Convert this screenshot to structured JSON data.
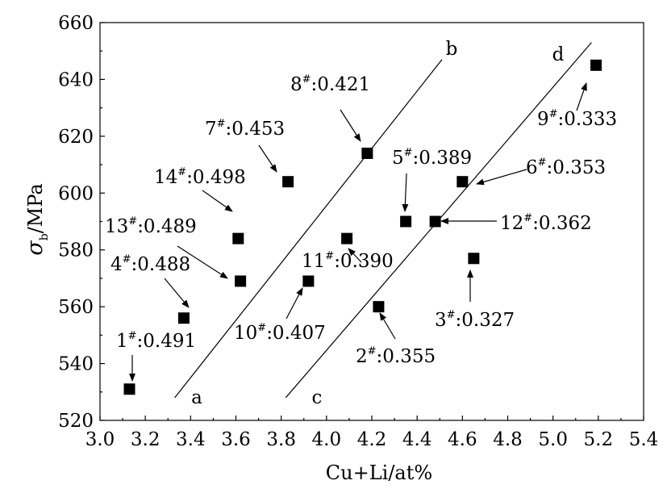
{
  "chart_data": {
    "type": "scatter",
    "xlabel": "Cu+Li/at%",
    "ylabel": {
      "symbol": "σ",
      "subscript": "b",
      "rest": "/MPa"
    },
    "xlim": [
      3.0,
      5.4
    ],
    "ylim": [
      520,
      660
    ],
    "xticks": [
      "3.0",
      "3.2",
      "3.4",
      "3.6",
      "3.8",
      "4.0",
      "4.2",
      "4.4",
      "4.6",
      "4.8",
      "5.0",
      "5.2",
      "5.4"
    ],
    "yticks": [
      "520",
      "540",
      "560",
      "580",
      "600",
      "620",
      "640",
      "660"
    ],
    "grid": false,
    "points": [
      {
        "id": "1",
        "x": 3.13,
        "y": 531,
        "value": "0.491"
      },
      {
        "id": "4",
        "x": 3.37,
        "y": 556,
        "value": "0.488"
      },
      {
        "id": "13",
        "x": 3.62,
        "y": 569,
        "value": "0.489"
      },
      {
        "id": "14",
        "x": 3.61,
        "y": 584,
        "value": "0.498"
      },
      {
        "id": "7",
        "x": 3.83,
        "y": 604,
        "value": "0.453"
      },
      {
        "id": "10",
        "x": 3.92,
        "y": 569,
        "value": "0.407"
      },
      {
        "id": "11",
        "x": 4.09,
        "y": 584,
        "value": "0.390"
      },
      {
        "id": "8",
        "x": 4.18,
        "y": 614,
        "value": "0.421"
      },
      {
        "id": "2",
        "x": 4.23,
        "y": 560,
        "value": "0.355"
      },
      {
        "id": "5",
        "x": 4.35,
        "y": 590,
        "value": "0.389"
      },
      {
        "id": "12",
        "x": 4.48,
        "y": 590,
        "value": "0.362"
      },
      {
        "id": "6",
        "x": 4.6,
        "y": 604,
        "value": "0.353"
      },
      {
        "id": "3",
        "x": 4.65,
        "y": 577,
        "value": "0.327"
      },
      {
        "id": "9",
        "x": 5.19,
        "y": 645,
        "value": "0.333"
      }
    ],
    "lines": [
      {
        "start": "a",
        "end": "b",
        "x1": 3.33,
        "y1": 528,
        "x2": 4.51,
        "y2": 647
      },
      {
        "start": "c",
        "end": "d",
        "x1": 3.82,
        "y1": 528,
        "x2": 5.17,
        "y2": 653
      }
    ]
  }
}
